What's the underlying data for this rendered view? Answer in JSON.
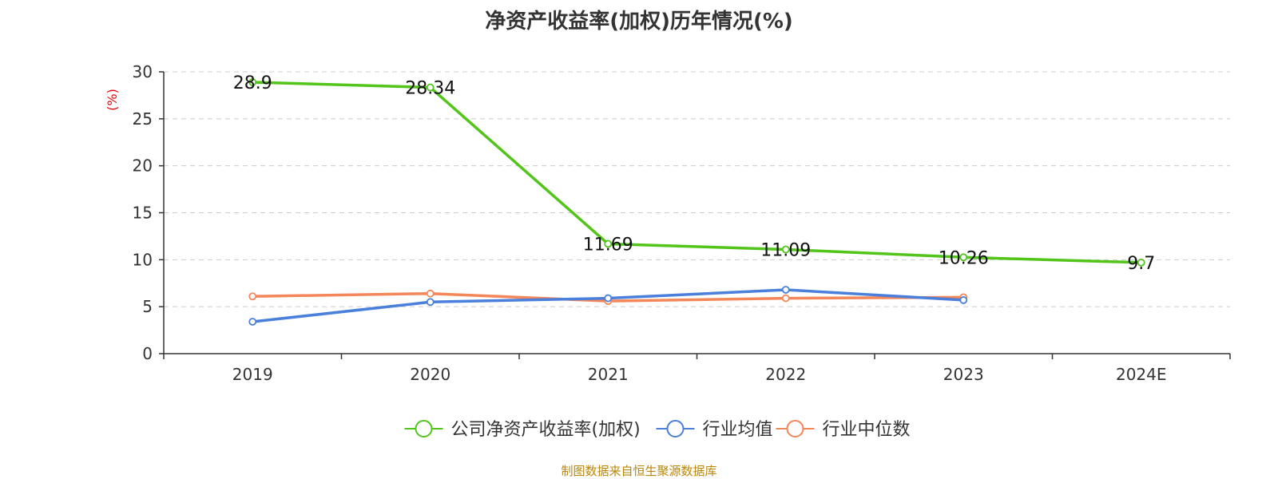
{
  "title": "净资产收益率(加权)历年情况(%)",
  "source": "制图数据来自恒生聚源数据库",
  "colors": {
    "company": "#52c41a",
    "avg": "#4a7fdb",
    "median": "#f4875a",
    "axis": "#333333",
    "grid": "#cccccc",
    "ylabel": "#e8000b"
  },
  "chart_data": {
    "type": "line",
    "title": "净资产收益率(加权)历年情况(%)",
    "xlabel": "",
    "ylabel": "(%)",
    "categories": [
      "2019",
      "2020",
      "2021",
      "2022",
      "2023",
      "2024E"
    ],
    "ylim": [
      0,
      30
    ],
    "yticks": [
      0,
      5,
      10,
      15,
      20,
      25,
      30
    ],
    "grid": true,
    "legend_position": "bottom",
    "series": [
      {
        "name": "公司净资产收益率(加权)",
        "values": [
          28.9,
          28.34,
          11.69,
          11.09,
          10.26,
          9.7
        ],
        "labels": [
          "28.9",
          "28.34",
          "11.69",
          "11.09",
          "10.26",
          "9.7"
        ],
        "color": "#52c41a"
      },
      {
        "name": "行业均值",
        "values": [
          3.4,
          5.5,
          5.9,
          6.8,
          5.7,
          null
        ],
        "color": "#4a7fdb"
      },
      {
        "name": "行业中位数",
        "values": [
          6.1,
          6.4,
          5.6,
          5.9,
          6.0,
          null
        ],
        "color": "#f4875a"
      }
    ]
  }
}
